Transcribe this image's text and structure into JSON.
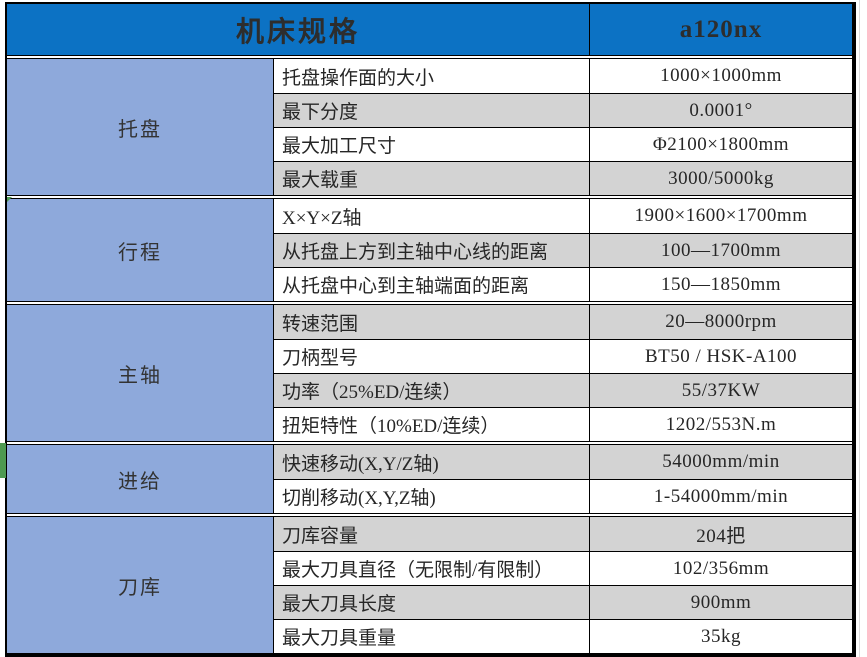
{
  "header": {
    "title": "机床规格",
    "model": "a120nx"
  },
  "sections": [
    {
      "name": "托盘",
      "rows": [
        {
          "label": "托盘操作面的大小",
          "value": "1000×1000mm"
        },
        {
          "label": "最下分度",
          "value": "0.0001°"
        },
        {
          "label": "最大加工尺寸",
          "value": "Φ2100×1800mm"
        },
        {
          "label": "最大载重",
          "value": "3000/5000kg"
        }
      ]
    },
    {
      "name": "行程",
      "rows": [
        {
          "label": "X×Y×Z轴",
          "value": "1900×1600×1700mm"
        },
        {
          "label": "从托盘上方到主轴中心线的距离",
          "value": "100—1700mm"
        },
        {
          "label": "从托盘中心到主轴端面的距离",
          "value": "150—1850mm"
        }
      ]
    },
    {
      "name": "主轴",
      "rows": [
        {
          "label": "转速范围",
          "value": "20—8000rpm"
        },
        {
          "label": "刀柄型号",
          "value": "BT50 / HSK-A100"
        },
        {
          "label": "功率（25%ED/连续）",
          "value": "55/37KW"
        },
        {
          "label": "扭矩特性（10%ED/连续）",
          "value": "1202/553N.m"
        }
      ]
    },
    {
      "name": "进给",
      "rows": [
        {
          "label": "快速移动(X,Y/Z轴)",
          "value": "54000mm/min"
        },
        {
          "label": "切削移动(X,Y,Z轴)",
          "value": "1-54000mm/min"
        }
      ]
    },
    {
      "name": "刀库",
      "rows": [
        {
          "label": "刀库容量",
          "value": "204把"
        },
        {
          "label": "最大刀具直径（无限制/有限制）",
          "value": "102/356mm"
        },
        {
          "label": "最大刀具长度",
          "value": "900mm"
        },
        {
          "label": "最大刀具重量",
          "value": "35kg"
        }
      ]
    }
  ],
  "colors": {
    "header_blue": "#0c72c4",
    "section_blue": "#8ea9db",
    "row_gray": "#d3d3d3",
    "row_white": "#ffffff",
    "marker_green": "#4e9a51",
    "border_black": "#000000"
  }
}
